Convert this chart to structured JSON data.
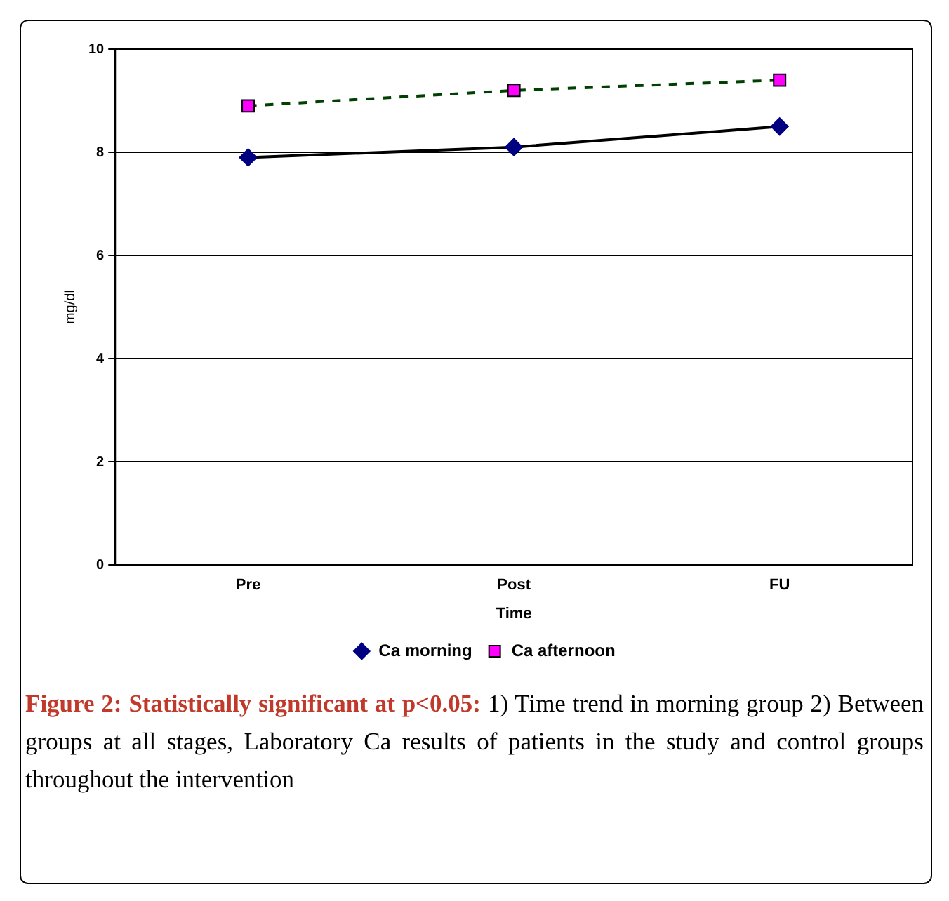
{
  "chart_data": {
    "type": "line",
    "title": "Figure 2: Statistically significant at p<0.05:",
    "annotations": [
      "1) Time trend in morning group 2) Between groups at all stages, Laboratory Ca results of patients in the study and control groups throughout the intervention"
    ],
    "xlabel": "Time",
    "ylabel": "mg/dl",
    "categories": [
      "Pre",
      "Post",
      "FU"
    ],
    "series": [
      {
        "name": "Ca morning",
        "color": "#000000",
        "colors": [
          "#000080",
          "#000080",
          "#000080"
        ],
        "marker": "diamond",
        "line_style": "solid",
        "values": [
          7.9,
          8.1,
          8.5
        ]
      },
      {
        "name": "Ca afternoon",
        "color": "#004000",
        "colors": [
          "#ff00ff",
          "#ff00ff",
          "#ff00ff"
        ],
        "marker": "square",
        "line_style": "dashed",
        "values": [
          8.9,
          9.2,
          9.4
        ]
      }
    ],
    "ylim": [
      0,
      10
    ],
    "yticks": [
      0,
      2,
      4,
      6,
      8,
      10
    ],
    "grid": "y",
    "legend": "bottom"
  }
}
